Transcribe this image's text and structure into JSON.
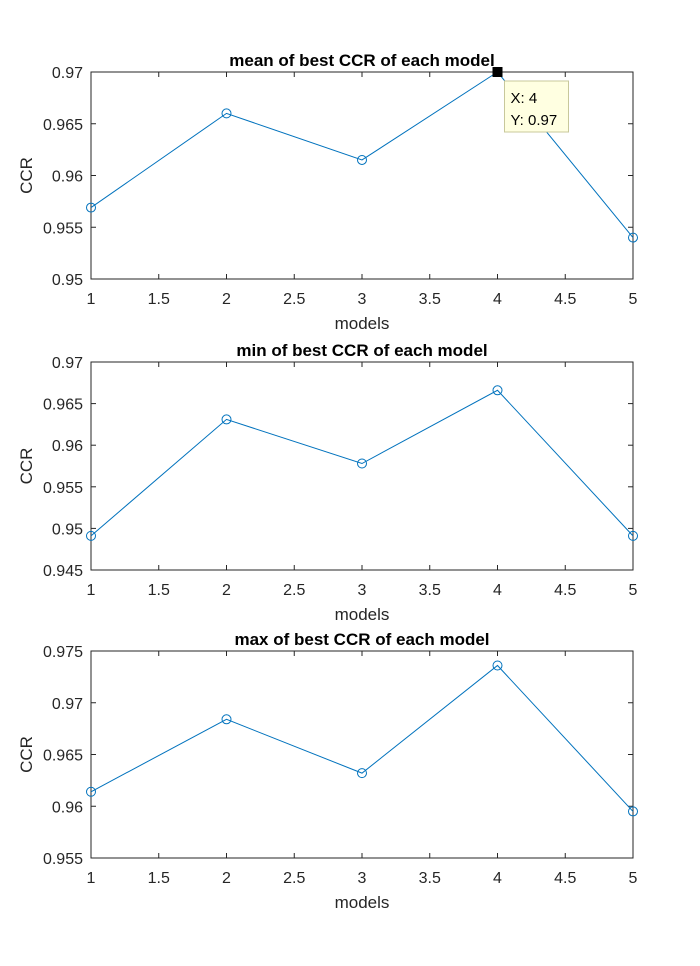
{
  "chart_data": [
    {
      "type": "line",
      "title": "mean of best CCR of each model",
      "xlabel": "models",
      "ylabel": "CCR",
      "x": [
        1,
        2,
        3,
        4,
        5
      ],
      "xlim": [
        1,
        5
      ],
      "xticks": [
        "1",
        "1.5",
        "2",
        "2.5",
        "3",
        "3.5",
        "4",
        "4.5",
        "5"
      ],
      "ylim": [
        0.95,
        0.97
      ],
      "yticks": [
        "0.95",
        "0.955",
        "0.96",
        "0.965",
        "0.97"
      ],
      "series": [
        {
          "values": [
            0.9569,
            0.966,
            0.9615,
            0.97,
            0.954
          ]
        }
      ],
      "color": "#0072bd",
      "grid": false,
      "datatip": {
        "point_index": 3,
        "x_text": "X: 4",
        "y_text": "Y: 0.97"
      }
    },
    {
      "type": "line",
      "title": "min of best CCR of each model",
      "xlabel": "models",
      "ylabel": "CCR",
      "x": [
        1,
        2,
        3,
        4,
        5
      ],
      "xlim": [
        1,
        5
      ],
      "xticks": [
        "1",
        "1.5",
        "2",
        "2.5",
        "3",
        "3.5",
        "4",
        "4.5",
        "5"
      ],
      "ylim": [
        0.945,
        0.97
      ],
      "yticks": [
        "0.945",
        "0.95",
        "0.955",
        "0.96",
        "0.965",
        "0.97"
      ],
      "series": [
        {
          "values": [
            0.9491,
            0.9631,
            0.9578,
            0.9666,
            0.9491
          ]
        }
      ],
      "color": "#0072bd",
      "grid": false
    },
    {
      "type": "line",
      "title": "max of best CCR of each model",
      "xlabel": "models",
      "ylabel": "CCR",
      "x": [
        1,
        2,
        3,
        4,
        5
      ],
      "xlim": [
        1,
        5
      ],
      "xticks": [
        "1",
        "1.5",
        "2",
        "2.5",
        "3",
        "3.5",
        "4",
        "4.5",
        "5"
      ],
      "ylim": [
        0.955,
        0.975
      ],
      "yticks": [
        "0.955",
        "0.96",
        "0.965",
        "0.97",
        "0.975"
      ],
      "series": [
        {
          "values": [
            0.9614,
            0.9684,
            0.9632,
            0.9736,
            0.9595
          ]
        }
      ],
      "color": "#0072bd",
      "grid": false
    }
  ]
}
